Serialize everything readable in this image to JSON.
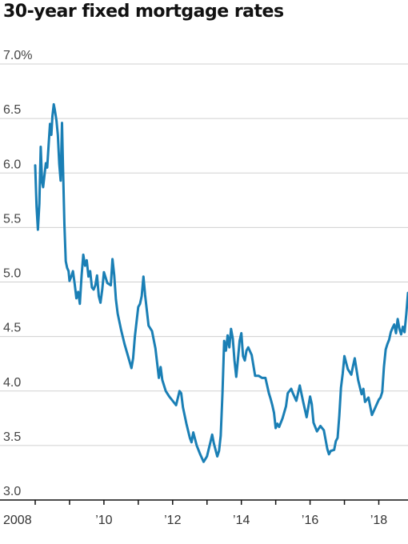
{
  "chart_data": {
    "type": "line",
    "title": "30-year fixed mortgage rates",
    "xlabel": "",
    "ylabel": "",
    "ylim": [
      3.0,
      7.0
    ],
    "xlim": [
      2008,
      2018.85
    ],
    "grid": true,
    "y_tick_labels": [
      "3.0",
      "3.5",
      "4.0",
      "4.5",
      "5.0",
      "5.5",
      "6.0",
      "6.5",
      "7.0%"
    ],
    "y_tick_values": [
      3.0,
      3.5,
      4.0,
      4.5,
      5.0,
      5.5,
      6.0,
      6.5,
      7.0
    ],
    "x_tick_labels": [
      "2008",
      "’10",
      "’12",
      "’14",
      "’16",
      "’18"
    ],
    "x_tick_values": [
      2008,
      2010,
      2012,
      2014,
      2016,
      2018
    ],
    "x_minor_ticks": [
      2009,
      2011,
      2013,
      2015,
      2017
    ],
    "line_color": "#1a7fb5",
    "series": [
      {
        "x": [
          2008.0,
          2008.04,
          2008.08,
          2008.12,
          2008.16,
          2008.2,
          2008.23,
          2008.27,
          2008.31,
          2008.35,
          2008.39,
          2008.43,
          2008.47,
          2008.5,
          2008.54,
          2008.57,
          2008.62,
          2008.66,
          2008.7,
          2008.74,
          2008.78,
          2008.81,
          2008.85,
          2008.89,
          2008.93,
          2008.97,
          2009.0,
          2009.05,
          2009.1,
          2009.15,
          2009.2,
          2009.25,
          2009.3,
          2009.35,
          2009.4,
          2009.45,
          2009.5,
          2009.55,
          2009.6,
          2009.65,
          2009.7,
          2009.75,
          2009.8,
          2009.85,
          2009.9,
          2009.95,
          2010.0,
          2010.1,
          2010.2,
          2010.25,
          2010.3,
          2010.35,
          2010.4,
          2010.5,
          2010.6,
          2010.7,
          2010.8,
          2010.85,
          2010.9,
          2011.0,
          2011.05,
          2011.1,
          2011.15,
          2011.2,
          2011.3,
          2011.4,
          2011.5,
          2011.6,
          2011.65,
          2011.7,
          2011.8,
          2011.9,
          2012.0,
          2012.1,
          2012.2,
          2012.25,
          2012.3,
          2012.4,
          2012.5,
          2012.55,
          2012.6,
          2012.7,
          2012.8,
          2012.9,
          2013.0,
          2013.1,
          2013.15,
          2013.2,
          2013.3,
          2013.35,
          2013.4,
          2013.45,
          2013.5,
          2013.55,
          2013.6,
          2013.65,
          2013.7,
          2013.75,
          2013.8,
          2013.85,
          2013.9,
          2013.95,
          2014.0,
          2014.05,
          2014.1,
          2014.15,
          2014.2,
          2014.3,
          2014.4,
          2014.5,
          2014.6,
          2014.7,
          2014.8,
          2014.85,
          2014.9,
          2014.95,
          2015.0,
          2015.05,
          2015.1,
          2015.2,
          2015.3,
          2015.35,
          2015.4,
          2015.45,
          2015.5,
          2015.6,
          2015.7,
          2015.8,
          2015.9,
          2016.0,
          2016.05,
          2016.1,
          2016.2,
          2016.3,
          2016.4,
          2016.5,
          2016.55,
          2016.6,
          2016.7,
          2016.75,
          2016.8,
          2016.85,
          2016.9,
          2016.95,
          2017.0,
          2017.1,
          2017.2,
          2017.25,
          2017.3,
          2017.4,
          2017.5,
          2017.55,
          2017.6,
          2017.7,
          2017.8,
          2017.9,
          2018.0,
          2018.05,
          2018.1,
          2018.15,
          2018.2,
          2018.25,
          2018.3,
          2018.35,
          2018.4,
          2018.45,
          2018.5,
          2018.55,
          2018.6,
          2018.65,
          2018.7,
          2018.75,
          2018.8,
          2018.85
        ],
        "y": [
          6.07,
          5.69,
          5.48,
          5.72,
          6.24,
          5.92,
          5.87,
          5.98,
          6.09,
          6.05,
          6.26,
          6.45,
          6.35,
          6.52,
          6.63,
          6.58,
          6.48,
          6.35,
          6.08,
          5.93,
          6.46,
          6.04,
          5.53,
          5.19,
          5.13,
          5.1,
          5.01,
          5.05,
          5.1,
          4.98,
          4.85,
          4.91,
          4.8,
          5.06,
          5.25,
          5.15,
          5.2,
          5.05,
          5.1,
          4.95,
          4.93,
          4.97,
          5.06,
          4.87,
          4.81,
          4.93,
          5.09,
          4.99,
          4.97,
          5.21,
          5.06,
          4.84,
          4.71,
          4.56,
          4.43,
          4.32,
          4.21,
          4.3,
          4.5,
          4.77,
          4.8,
          4.87,
          5.05,
          4.88,
          4.6,
          4.55,
          4.39,
          4.12,
          4.22,
          4.1,
          4.0,
          3.95,
          3.91,
          3.87,
          4.0,
          3.98,
          3.85,
          3.7,
          3.57,
          3.53,
          3.62,
          3.5,
          3.42,
          3.35,
          3.4,
          3.53,
          3.6,
          3.52,
          3.4,
          3.45,
          3.59,
          3.98,
          4.46,
          4.37,
          4.51,
          4.4,
          4.57,
          4.48,
          4.28,
          4.13,
          4.29,
          4.46,
          4.53,
          4.32,
          4.28,
          4.37,
          4.4,
          4.33,
          4.14,
          4.14,
          4.12,
          4.12,
          3.98,
          3.93,
          3.87,
          3.8,
          3.66,
          3.7,
          3.67,
          3.75,
          3.86,
          3.98,
          4.0,
          4.02,
          3.98,
          3.91,
          4.05,
          3.9,
          3.76,
          3.95,
          3.88,
          3.71,
          3.63,
          3.68,
          3.64,
          3.47,
          3.42,
          3.45,
          3.46,
          3.54,
          3.57,
          3.77,
          4.03,
          4.16,
          4.32,
          4.2,
          4.15,
          4.23,
          4.3,
          4.1,
          3.97,
          4.02,
          3.9,
          3.94,
          3.78,
          3.85,
          3.92,
          3.94,
          3.99,
          4.22,
          4.38,
          4.43,
          4.47,
          4.54,
          4.58,
          4.61,
          4.53,
          4.66,
          4.57,
          4.52,
          4.59,
          4.54,
          4.71,
          4.9
        ]
      }
    ]
  }
}
